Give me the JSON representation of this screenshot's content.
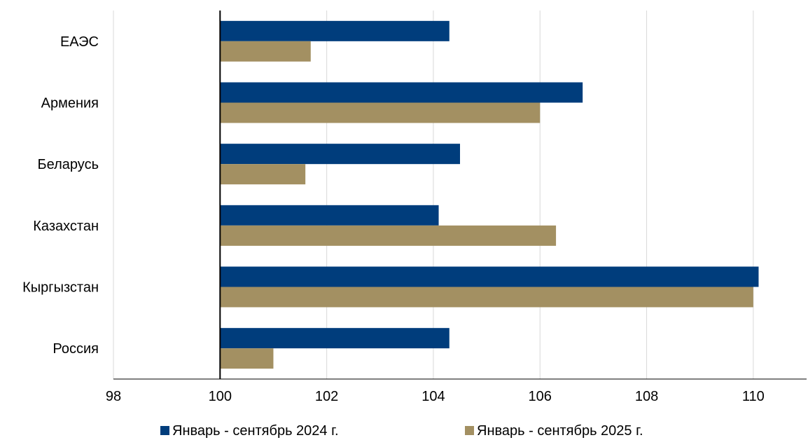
{
  "chart_data": {
    "type": "bar",
    "orientation": "horizontal",
    "categories": [
      "ЕАЭС",
      "Армения",
      "Беларусь",
      "Казахстан",
      "Кыргызстан",
      "Россия"
    ],
    "series": [
      {
        "name": "Январь - сентябрь 2024 г.",
        "color": "#003d7c",
        "values": [
          104.3,
          106.8,
          104.5,
          104.1,
          110.1,
          104.3
        ]
      },
      {
        "name": "Январь - сентябрь 2025 г.",
        "color": "#a39062",
        "values": [
          101.7,
          106.0,
          101.6,
          106.3,
          110.0,
          101.0
        ]
      }
    ],
    "xlim": [
      98,
      111
    ],
    "baseline": 100,
    "xticks": [
      "98",
      "100",
      "102",
      "104",
      "106",
      "108",
      "110"
    ],
    "grid": "vertical",
    "legend": "bottom"
  }
}
